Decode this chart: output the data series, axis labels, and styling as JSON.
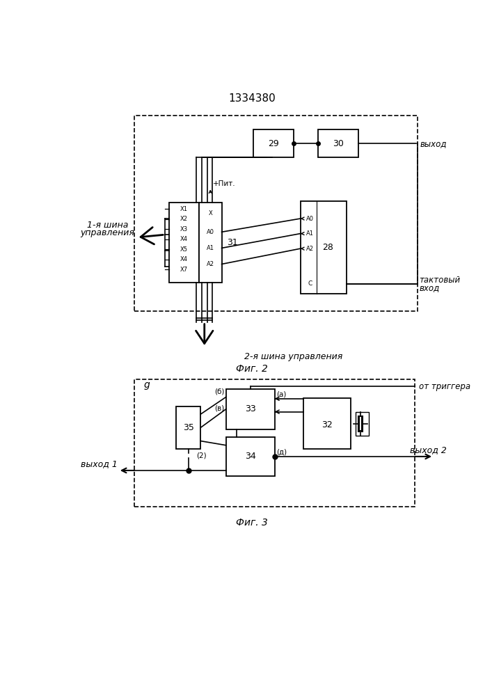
{
  "title": "1334380",
  "fig2_label": "Фиг. 2",
  "fig3_label": "Фиг. 3",
  "background": "#ffffff"
}
